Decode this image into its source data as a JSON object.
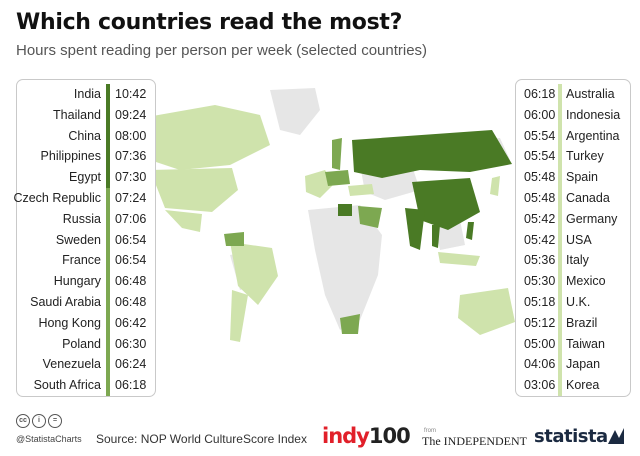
{
  "title": "Which countries read the most?",
  "subtitle": "Hours spent reading per person per week (selected countries)",
  "colors": {
    "dark_green": "#4a7a25",
    "mid_green": "#7da851",
    "light_green": "#cfe3ac",
    "land_gray": "#e6e6e6"
  },
  "chart_data": {
    "type": "table",
    "unit": "hours:minutes per week",
    "left_column": [
      {
        "country": "India",
        "time": "10:42",
        "tier": "dark"
      },
      {
        "country": "Thailand",
        "time": "09:24",
        "tier": "dark"
      },
      {
        "country": "China",
        "time": "08:00",
        "tier": "dark"
      },
      {
        "country": "Philippines",
        "time": "07:36",
        "tier": "dark"
      },
      {
        "country": "Egypt",
        "time": "07:30",
        "tier": "dark"
      },
      {
        "country": "Czech Republic",
        "time": "07:24",
        "tier": "mid"
      },
      {
        "country": "Russia",
        "time": "07:06",
        "tier": "mid"
      },
      {
        "country": "Sweden",
        "time": "06:54",
        "tier": "mid"
      },
      {
        "country": "France",
        "time": "06:54",
        "tier": "mid"
      },
      {
        "country": "Hungary",
        "time": "06:48",
        "tier": "mid"
      },
      {
        "country": "Saudi Arabia",
        "time": "06:48",
        "tier": "mid"
      },
      {
        "country": "Hong Kong",
        "time": "06:42",
        "tier": "mid"
      },
      {
        "country": "Poland",
        "time": "06:30",
        "tier": "mid"
      },
      {
        "country": "Venezuela",
        "time": "06:24",
        "tier": "mid"
      },
      {
        "country": "South Africa",
        "time": "06:18",
        "tier": "mid"
      }
    ],
    "right_column": [
      {
        "country": "Australia",
        "time": "06:18",
        "tier": "light"
      },
      {
        "country": "Indonesia",
        "time": "06:00",
        "tier": "light"
      },
      {
        "country": "Argentina",
        "time": "05:54",
        "tier": "light"
      },
      {
        "country": "Turkey",
        "time": "05:54",
        "tier": "light"
      },
      {
        "country": "Spain",
        "time": "05:48",
        "tier": "light"
      },
      {
        "country": "Canada",
        "time": "05:48",
        "tier": "light"
      },
      {
        "country": "Germany",
        "time": "05:42",
        "tier": "light"
      },
      {
        "country": "USA",
        "time": "05:42",
        "tier": "light"
      },
      {
        "country": "Italy",
        "time": "05:36",
        "tier": "light"
      },
      {
        "country": "Mexico",
        "time": "05:30",
        "tier": "light"
      },
      {
        "country": "U.K.",
        "time": "05:18",
        "tier": "light"
      },
      {
        "country": "Brazil",
        "time": "05:12",
        "tier": "light"
      },
      {
        "country": "Taiwan",
        "time": "05:00",
        "tier": "light"
      },
      {
        "country": "Japan",
        "time": "04:06",
        "tier": "light"
      },
      {
        "country": "Korea",
        "time": "03:06",
        "tier": "light"
      }
    ]
  },
  "footer": {
    "cc_icons": [
      "cc",
      "i",
      "="
    ],
    "handle": "@StatistaCharts",
    "source": "Source: NOP World CultureScore Index",
    "indy_text": "indy",
    "indy_num": "100",
    "from_text": "from",
    "independent_text": "The INDEPENDENT",
    "statista_text": "statista"
  }
}
